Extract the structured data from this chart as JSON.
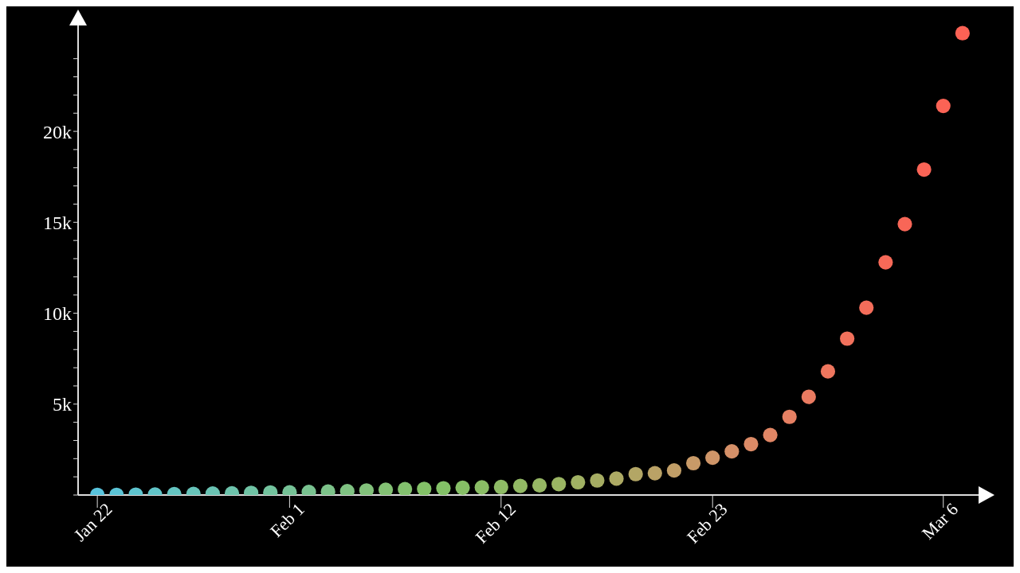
{
  "chart_data": {
    "type": "scatter",
    "x": [
      "--01-22",
      "--01-23",
      "--01-24",
      "--01-25",
      "--01-26",
      "--01-27",
      "--01-28",
      "--01-29",
      "--01-30",
      "--01-31",
      "--02-01",
      "--02-02",
      "--02-03",
      "--02-04",
      "--02-05",
      "--02-06",
      "--02-07",
      "--02-08",
      "--02-09",
      "--02-10",
      "--02-11",
      "--02-12",
      "--02-13",
      "--02-14",
      "--02-15",
      "--02-16",
      "--02-17",
      "--02-18",
      "--02-19",
      "--02-20",
      "--02-21",
      "--02-22",
      "--02-23",
      "--02-24",
      "--02-25",
      "--02-26",
      "--02-27",
      "--02-28",
      "--02-29",
      "--03-01",
      "--03-02",
      "--03-03",
      "--03-04",
      "--03-05",
      "--03-06",
      "--03-07"
    ],
    "values": [
      10,
      10,
      20,
      30,
      50,
      60,
      80,
      90,
      120,
      140,
      150,
      170,
      190,
      210,
      250,
      290,
      320,
      340,
      370,
      400,
      420,
      440,
      500,
      530,
      600,
      700,
      800,
      900,
      1150,
      1200,
      1350,
      1750,
      2050,
      2400,
      2800,
      3300,
      4300,
      5400,
      6800,
      8600,
      10300,
      12800,
      14900,
      17900,
      21400,
      25400
    ],
    "colors": [
      "#58c4dd",
      "#5bc4d6",
      "#5ec4cf",
      "#61c4c8",
      "#64c4c1",
      "#67c4ba",
      "#6ac3b3",
      "#6dc3ac",
      "#70c3a5",
      "#73c39e",
      "#76c297",
      "#79c290",
      "#7cc289",
      "#7fc282",
      "#82c17b",
      "#83c174",
      "#83c16e",
      "#83c167",
      "#83c167",
      "#86bf66",
      "#8abd65",
      "#8ebb65",
      "#92b964",
      "#96b764",
      "#9ab563",
      "#a0b163",
      "#a6ad63",
      "#adaa64",
      "#b3a665",
      "#baa266",
      "#c19e67",
      "#c89a68",
      "#cf9568",
      "#d59068",
      "#dc8b67",
      "#e18665",
      "#e68063",
      "#ea7b61",
      "#ee765e",
      "#f1715c",
      "#f46d5a",
      "#f66958",
      "#f86657",
      "#fa6456",
      "#fb6355",
      "#fc6255"
    ],
    "xlim": [
      "--01-21",
      "--03-08"
    ],
    "xticks": [
      {
        "value": "--01-22",
        "label": "Jan 22"
      },
      {
        "value": "--02-01",
        "label": "Feb 1"
      },
      {
        "value": "--02-12",
        "label": "Feb 12"
      },
      {
        "value": "--02-23",
        "label": "Feb 23"
      },
      {
        "value": "--03-06",
        "label": "Mar 6"
      }
    ],
    "ylim": [
      0,
      26000
    ],
    "yticks": [
      {
        "value": 0,
        "label": null
      },
      {
        "value": 1000,
        "label": null
      },
      {
        "value": 2000,
        "label": null
      },
      {
        "value": 3000,
        "label": null
      },
      {
        "value": 4000,
        "label": null
      },
      {
        "value": 5000,
        "label": "5k"
      },
      {
        "value": 6000,
        "label": null
      },
      {
        "value": 7000,
        "label": null
      },
      {
        "value": 8000,
        "label": null
      },
      {
        "value": 9000,
        "label": null
      },
      {
        "value": 10000,
        "label": "10k"
      },
      {
        "value": 11000,
        "label": null
      },
      {
        "value": 12000,
        "label": null
      },
      {
        "value": 13000,
        "label": null
      },
      {
        "value": 14000,
        "label": null
      },
      {
        "value": 15000,
        "label": "15k"
      },
      {
        "value": 16000,
        "label": null
      },
      {
        "value": 17000,
        "label": null
      },
      {
        "value": 18000,
        "label": null
      },
      {
        "value": 19000,
        "label": null
      },
      {
        "value": 20000,
        "label": "20k"
      },
      {
        "value": 21000,
        "label": null
      },
      {
        "value": 22000,
        "label": null
      },
      {
        "value": 23000,
        "label": null
      },
      {
        "value": 24000,
        "label": null
      }
    ],
    "grid": false,
    "legend": false,
    "marker": "circle"
  }
}
